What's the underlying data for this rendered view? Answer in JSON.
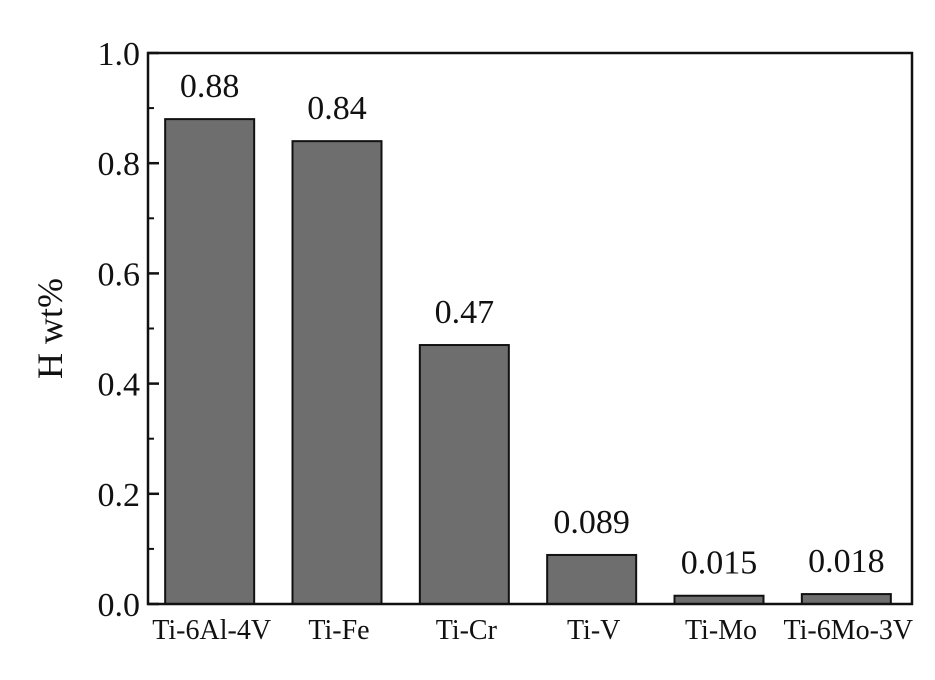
{
  "chart_data": {
    "type": "bar",
    "categories": [
      "Ti-6Al-4V",
      "Ti-Fe",
      "Ti-Cr",
      "Ti-V",
      "Ti-Mo",
      "Ti-6Mo-3V"
    ],
    "values": [
      0.88,
      0.84,
      0.47,
      0.089,
      0.015,
      0.018
    ],
    "value_labels": [
      "0.88",
      "0.84",
      "0.47",
      "0.089",
      "0.015",
      "0.018"
    ],
    "ylabel": "H wt%",
    "xlabel": "",
    "ylim": [
      0,
      1.0
    ],
    "yticks": [
      "0.0",
      "0.2",
      "0.4",
      "0.6",
      "0.8",
      "1.0"
    ],
    "grid": false,
    "colors": {
      "bar_fill": "#6e6e6e",
      "bar_stroke": "#111111",
      "axis": "#111111"
    }
  }
}
